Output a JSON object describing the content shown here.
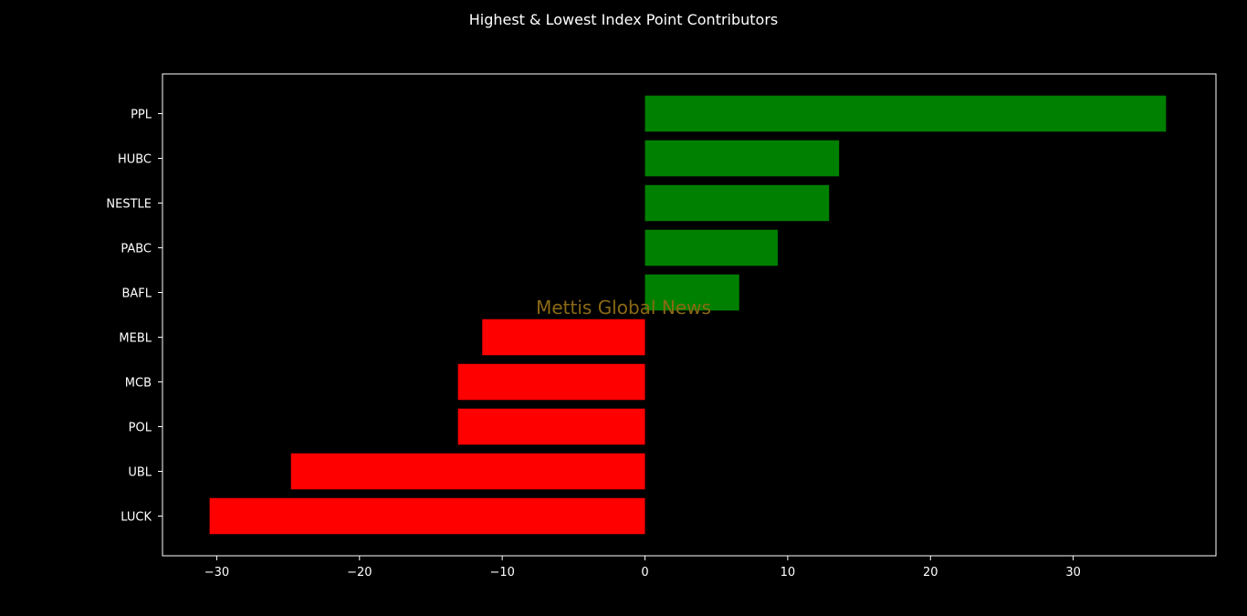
{
  "chart_data": {
    "type": "bar",
    "orientation": "horizontal",
    "title": "Highest & Lowest Index Point Contributors",
    "watermark": "Mettis Global News",
    "categories": [
      "PPL",
      "HUBC",
      "NESTLE",
      "PABC",
      "BAFL",
      "MEBL",
      "MCB",
      "POL",
      "UBL",
      "LUCK"
    ],
    "values": [
      36.5,
      13.6,
      12.9,
      9.3,
      6.6,
      -11.4,
      -13.1,
      -13.1,
      -24.8,
      -30.5
    ],
    "xlim": [
      -33.8,
      40.0
    ],
    "xticks": [
      -30,
      -20,
      -10,
      0,
      10,
      20,
      30
    ],
    "xtick_labels": [
      "−30",
      "−20",
      "−10",
      "0",
      "10",
      "20",
      "30"
    ],
    "xlabel": "",
    "ylabel": "",
    "grid": false,
    "colors": {
      "positive": "#008000",
      "negative": "#ff0000",
      "background": "#000000",
      "axes": "#ffffff",
      "watermark": "#8b6914"
    }
  }
}
